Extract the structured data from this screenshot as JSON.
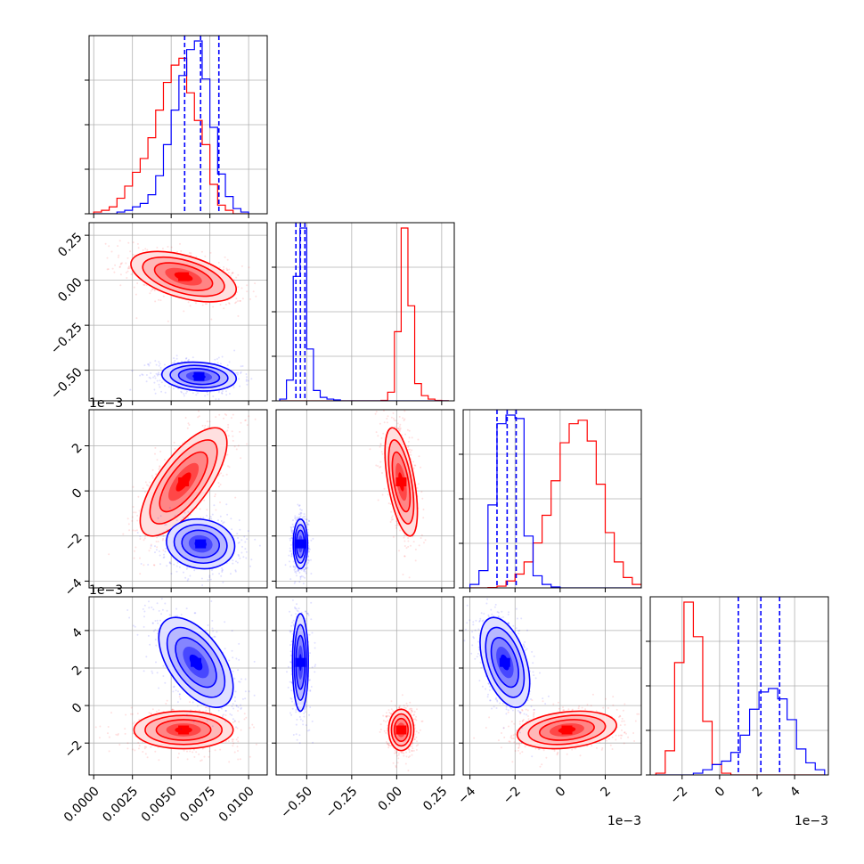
{
  "chart_data": {
    "type": "corner",
    "series": [
      {
        "color": "#ff0000"
      },
      {
        "color": "#0000ff"
      }
    ],
    "params": [
      {
        "range": [
          -0.0003,
          0.0112
        ],
        "ticks": [
          0.0,
          0.0025,
          0.005,
          0.0075,
          0.01
        ],
        "tick_labels": [
          "0.0000",
          "0.0025",
          "0.0050",
          "0.0075",
          "0.0100"
        ],
        "offset_text": ""
      },
      {
        "range": [
          -0.67,
          0.32
        ],
        "ticks": [
          -0.5,
          -0.25,
          0.0,
          0.25
        ],
        "tick_labels": [
          "−0.50",
          "−0.25",
          "0.00",
          "0.25"
        ],
        "offset_text": ""
      },
      {
        "range": [
          -4.3,
          3.6
        ],
        "ticks": [
          -4,
          -2,
          0,
          2
        ],
        "tick_labels": [
          "−4",
          "−2",
          "0",
          "2"
        ],
        "offset_text": "1e−3"
      },
      {
        "range": [
          -3.7,
          5.8
        ],
        "ticks": [
          -2,
          0,
          2,
          4
        ],
        "tick_labels": [
          "−2",
          "0",
          "2",
          "4"
        ],
        "offset_text": "1e−3"
      }
    ],
    "diag": [
      {
        "bins": [
          0.0,
          0.0005,
          0.001,
          0.0015,
          0.002,
          0.0025,
          0.003,
          0.0035,
          0.004,
          0.0045,
          0.005,
          0.0055,
          0.006,
          0.0065,
          0.007,
          0.0075,
          0.008,
          0.0085,
          0.009,
          0.0095,
          0.01
        ],
        "counts": [
          [
            0.01,
            0.02,
            0.04,
            0.09,
            0.16,
            0.24,
            0.32,
            0.44,
            0.6,
            0.76,
            0.86,
            0.9,
            0.7,
            0.54,
            0.4,
            0.17,
            0.05,
            0.02,
            0.0,
            0.0
          ],
          [
            0.0,
            0.0,
            0.0,
            0.01,
            0.02,
            0.04,
            0.06,
            0.11,
            0.22,
            0.4,
            0.6,
            0.8,
            0.95,
            1.0,
            0.78,
            0.5,
            0.23,
            0.1,
            0.03,
            0.01
          ]
        ],
        "quantile_lines": [
          0.00587,
          0.0069,
          0.00808
        ]
      },
      {
        "bins": [
          -0.65,
          -0.6125,
          -0.575,
          -0.5375,
          -0.5,
          -0.4625,
          -0.425,
          -0.3875,
          -0.35,
          -0.3125,
          -0.275,
          -0.2375,
          -0.2,
          -0.1625,
          -0.125,
          -0.0875,
          -0.05,
          -0.0125,
          0.025,
          0.0625,
          0.1,
          0.1375,
          0.175,
          0.2125,
          0.25,
          0.2875
        ],
        "counts": [
          [
            0,
            0,
            0,
            0,
            0,
            0,
            0,
            0,
            0,
            0,
            0,
            0,
            0,
            0,
            0,
            0.003,
            0.05,
            0.4,
            1.0,
            0.55,
            0.1,
            0.03,
            0.01,
            0.003,
            0.001
          ],
          [
            0.01,
            0.12,
            0.72,
            1.0,
            0.3,
            0.06,
            0.02,
            0.01,
            0.005,
            0,
            0,
            0,
            0,
            0,
            0,
            0,
            0,
            0,
            0,
            0,
            0,
            0,
            0,
            0,
            0
          ]
        ],
        "quantile_lines": [
          -0.56,
          -0.535,
          -0.51
        ]
      },
      {
        "bins": [
          -4.0,
          -3.6,
          -3.2,
          -2.8,
          -2.4,
          -2.0,
          -1.6,
          -1.2,
          -0.8,
          -0.4,
          0.0,
          0.4,
          0.8,
          1.2,
          1.6,
          2.0,
          2.4,
          2.8,
          3.2,
          3.6
        ],
        "counts": [
          [
            0,
            0,
            0.002,
            0.01,
            0.04,
            0.08,
            0.15,
            0.26,
            0.42,
            0.62,
            0.84,
            0.95,
            0.97,
            0.85,
            0.6,
            0.32,
            0.15,
            0.06,
            0.02
          ],
          [
            0.02,
            0.1,
            0.48,
            0.95,
            1.0,
            0.98,
            0.3,
            0.07,
            0.02,
            0.005,
            0,
            0,
            0,
            0,
            0,
            0,
            0,
            0,
            0
          ]
        ],
        "quantile_lines": [
          -2.8,
          -2.35,
          -1.95
        ]
      },
      {
        "bins": [
          -3.4,
          -2.9,
          -2.4,
          -1.9,
          -1.4,
          -0.9,
          -0.4,
          0.1,
          0.6,
          1.1,
          1.6,
          2.1,
          2.6,
          3.1,
          3.6,
          4.1,
          4.6,
          5.1,
          5.6
        ],
        "counts": [
          [
            0.01,
            0.14,
            0.65,
            1.0,
            0.8,
            0.31,
            0.06,
            0.01,
            0,
            0,
            0,
            0,
            0,
            0,
            0,
            0,
            0,
            0
          ],
          [
            0,
            0,
            0,
            0,
            0.01,
            0.03,
            0.06,
            0.08,
            0.13,
            0.23,
            0.38,
            0.48,
            0.5,
            0.44,
            0.32,
            0.15,
            0.07,
            0.03
          ]
        ],
        "quantile_lines": [
          1.0,
          2.2,
          3.2
        ]
      }
    ],
    "pairs": [
      {
        "row": 1,
        "col": 0,
        "blobs": [
          {
            "color": "#ff0000",
            "mean": [
              0.0058,
              0.02
            ],
            "sd": [
              0.0017,
              0.07
            ],
            "rho": -0.5
          },
          {
            "color": "#0000ff",
            "mean": [
              0.0068,
              -0.535
            ],
            "sd": [
              0.0012,
              0.04
            ],
            "rho": -0.15
          }
        ]
      },
      {
        "row": 2,
        "col": 0,
        "blobs": [
          {
            "color": "#ff0000",
            "mean": [
              0.0058,
              0.4
            ],
            "sd": [
              0.0014,
              1.2
            ],
            "rho": 0.72
          },
          {
            "color": "#0000ff",
            "mean": [
              0.0069,
              -2.35
            ],
            "sd": [
              0.0011,
              0.55
            ],
            "rho": -0.1
          }
        ]
      },
      {
        "row": 2,
        "col": 1,
        "blobs": [
          {
            "color": "#ff0000",
            "mean": [
              0.025,
              0.4
            ],
            "sd": [
              0.045,
              1.2
            ],
            "rho": -0.55
          },
          {
            "color": "#0000ff",
            "mean": [
              -0.535,
              -2.35
            ],
            "sd": [
              0.02,
              0.55
            ],
            "rho": 0.0
          }
        ]
      },
      {
        "row": 3,
        "col": 0,
        "blobs": [
          {
            "color": "#ff0000",
            "mean": [
              0.0058,
              -1.3
            ],
            "sd": [
              0.0016,
              0.5
            ],
            "rho": 0.0
          },
          {
            "color": "#0000ff",
            "mean": [
              0.0066,
              2.3
            ],
            "sd": [
              0.0012,
              1.2
            ],
            "rho": -0.55
          }
        ]
      },
      {
        "row": 3,
        "col": 1,
        "blobs": [
          {
            "color": "#ff0000",
            "mean": [
              0.025,
              -1.3
            ],
            "sd": [
              0.035,
              0.55
            ],
            "rho": 0.0
          },
          {
            "color": "#0000ff",
            "mean": [
              -0.535,
              2.3
            ],
            "sd": [
              0.022,
              1.3
            ],
            "rho": 0.0
          }
        ]
      },
      {
        "row": 3,
        "col": 2,
        "blobs": [
          {
            "color": "#ff0000",
            "mean": [
              0.3,
              -1.3
            ],
            "sd": [
              1.1,
              0.5
            ],
            "rho": 0.25
          },
          {
            "color": "#0000ff",
            "mean": [
              -2.45,
              2.3
            ],
            "sd": [
              0.55,
              1.2
            ],
            "rho": -0.45
          }
        ]
      }
    ],
    "grid": true,
    "legend": "none"
  }
}
